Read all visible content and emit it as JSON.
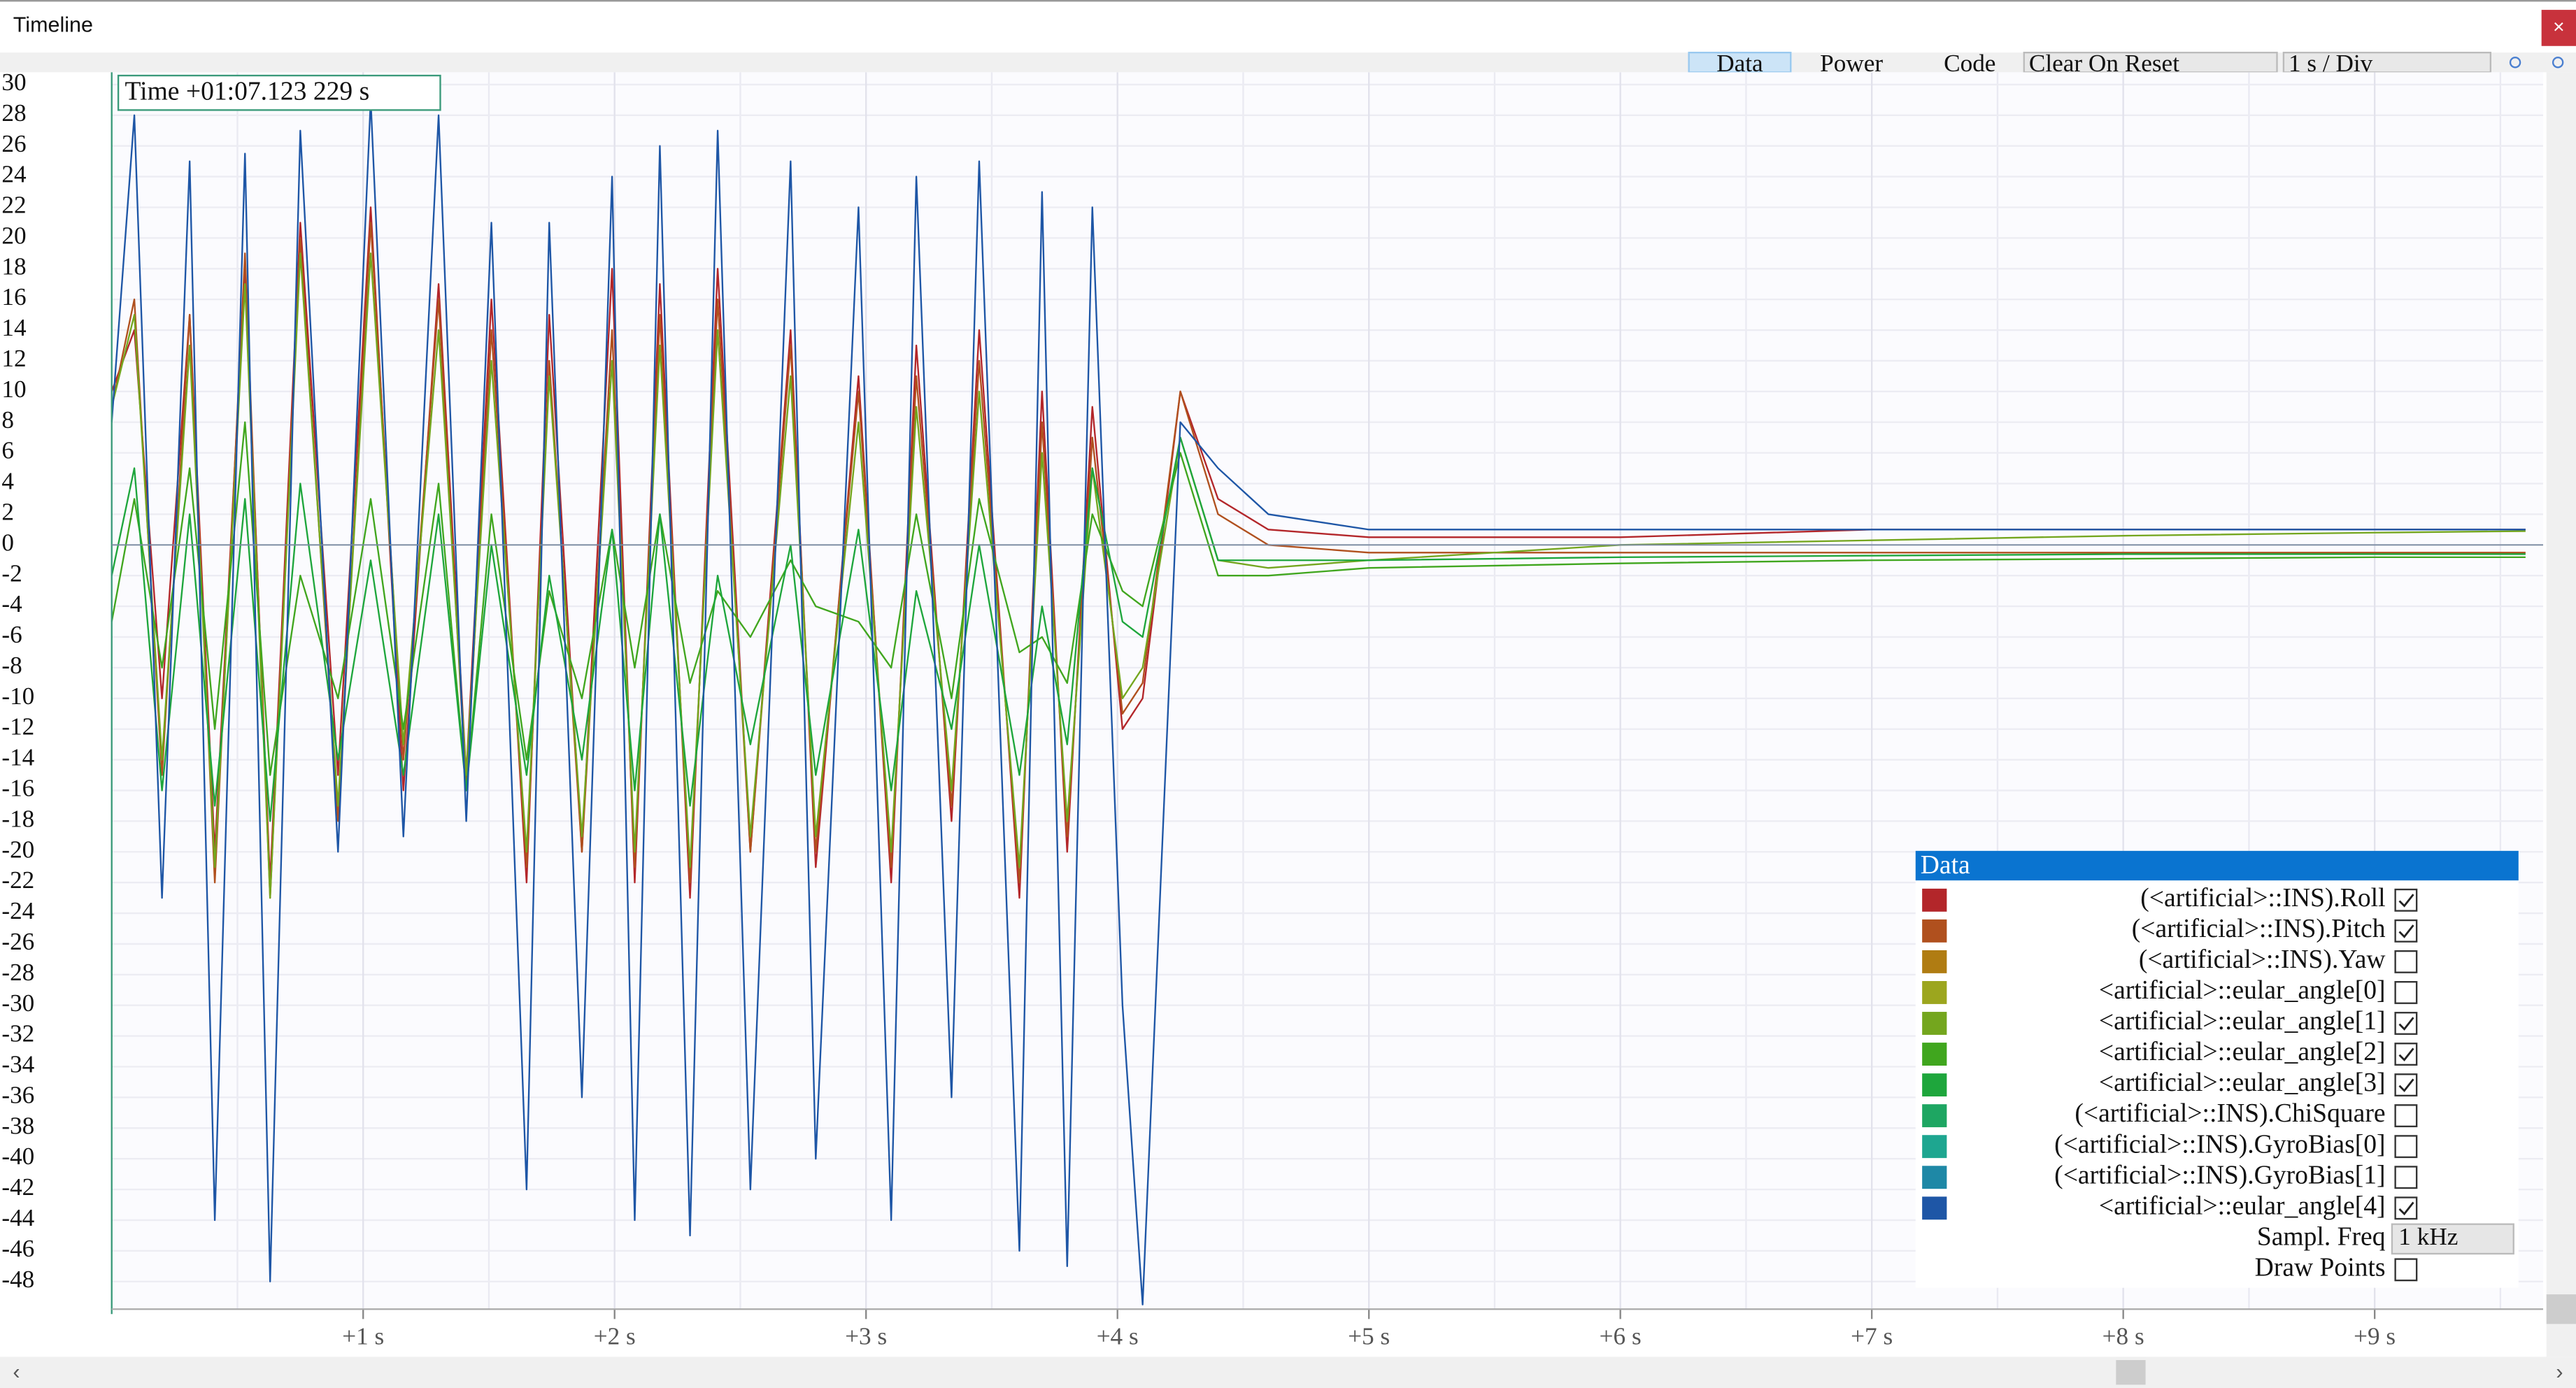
{
  "window": {
    "title": "Timeline"
  },
  "toolbar": {
    "tabs": [
      "Data",
      "Power",
      "Code"
    ],
    "active_tab": 0,
    "reset_mode": "Clear On Reset",
    "time_scale": "1 s / Div"
  },
  "chart_data": {
    "type": "line",
    "cursor_label": "Time +01:07.123 229 s",
    "x": [
      0,
      0.09,
      0.2,
      0.31,
      0.41,
      0.53,
      0.63,
      0.75,
      0.9,
      1.03,
      1.16,
      1.3,
      1.41,
      1.51,
      1.65,
      1.74,
      1.87,
      1.99,
      2.08,
      2.18,
      2.3,
      2.41,
      2.54,
      2.7,
      2.8,
      2.97,
      3.1,
      3.2,
      3.34,
      3.45,
      3.61,
      3.7,
      3.8,
      3.9,
      4.02,
      4.1,
      4.25,
      4.4,
      4.6,
      5,
      6,
      7,
      8,
      9,
      9.6
    ],
    "xlim": [
      0,
      9.67
    ],
    "xticks": [
      {
        "value": 1,
        "label": "+1 s"
      },
      {
        "value": 2,
        "label": "+2 s"
      },
      {
        "value": 3,
        "label": "+3 s"
      },
      {
        "value": 4,
        "label": "+4 s"
      },
      {
        "value": 5,
        "label": "+5 s"
      },
      {
        "value": 6,
        "label": "+6 s"
      },
      {
        "value": 7,
        "label": "+7 s"
      },
      {
        "value": 8,
        "label": "+8 s"
      },
      {
        "value": 9,
        "label": "+9 s"
      }
    ],
    "ylim": [
      -49.8,
      30.8
    ],
    "yticks": [
      30,
      28,
      26,
      24,
      22,
      20,
      18,
      16,
      14,
      12,
      10,
      8,
      6,
      4,
      2,
      0,
      -2,
      -4,
      -6,
      -8,
      -10,
      -12,
      -14,
      -16,
      -18,
      -20,
      -22,
      -24,
      -26,
      -28,
      -30,
      -32,
      -34,
      -36,
      -38,
      -40,
      -42,
      -44,
      -46,
      -48
    ],
    "grid": true,
    "series": [
      {
        "name": "(<artificial>::INS).Roll",
        "color": "#b3262a",
        "checked": true,
        "values": [
          10,
          14,
          -10,
          15,
          -20,
          18,
          -22,
          21,
          -15,
          22,
          -16,
          17,
          -15,
          16,
          -22,
          15,
          -20,
          18,
          -22,
          17,
          -23,
          18,
          -20,
          14,
          -21,
          11,
          -22,
          13,
          -18,
          14,
          -23,
          10,
          -20,
          9,
          -12,
          -10,
          10,
          3,
          1,
          0.5,
          0.5,
          1,
          1,
          1,
          1
        ]
      },
      {
        "name": "(<artificial>::INS).Pitch",
        "color": "#b0501e",
        "checked": true,
        "values": [
          9,
          16,
          -15,
          15,
          -22,
          19,
          -23,
          20,
          -18,
          21,
          -14,
          16,
          -16,
          14,
          -21,
          12,
          -20,
          14,
          -21,
          15,
          -22,
          16,
          -20,
          13,
          -20,
          10,
          -21,
          11,
          -17,
          12,
          -22,
          8,
          -19,
          7,
          -11,
          -9,
          10,
          2,
          0,
          -0.5,
          -0.5,
          -0.5,
          -0.5,
          -0.5,
          -0.5
        ]
      },
      {
        "name": "(<artificial>::INS).Yaw",
        "color": "#b07c12",
        "checked": false
      },
      {
        "name": "<artificial>::eular_angle[0]",
        "color": "#9ca61e",
        "checked": false
      },
      {
        "name": "<artificial>::eular_angle[1]",
        "color": "#74a61e",
        "checked": true,
        "values": [
          9,
          15,
          -14,
          13,
          -21,
          17,
          -23,
          19,
          -17,
          19,
          -13,
          14,
          -15,
          12,
          -20,
          11,
          -19,
          12,
          -20,
          13,
          -21,
          14,
          -19,
          11,
          -19,
          8,
          -20,
          9,
          -16,
          10,
          -21,
          6,
          -18,
          5,
          -10,
          -8,
          7,
          -1,
          -1.5,
          -1,
          0,
          0.3,
          0.6,
          0.8,
          0.9
        ]
      },
      {
        "name": "<artificial>::eular_angle[2]",
        "color": "#40a61e",
        "checked": true,
        "values": [
          -5,
          3,
          -8,
          5,
          -12,
          8,
          -15,
          -2,
          -10,
          3,
          -12,
          4,
          -16,
          2,
          -14,
          -3,
          -10,
          1,
          -8,
          2,
          -9,
          -3,
          -6,
          -1,
          -4,
          -5,
          -8,
          2,
          -10,
          3,
          -7,
          -6,
          -9,
          2,
          -3,
          -4,
          6,
          -2,
          -2,
          -1.5,
          -1.2,
          -1,
          -0.9,
          -0.8,
          -0.8
        ]
      },
      {
        "name": "<artificial>::eular_angle[3]",
        "color": "#1ea63c",
        "checked": true,
        "values": [
          -2,
          5,
          -16,
          2,
          -17,
          3,
          -18,
          4,
          -14,
          -1,
          -15,
          2,
          -16,
          0,
          -15,
          -2,
          -14,
          1,
          -16,
          2,
          -17,
          -2,
          -13,
          0,
          -15,
          1,
          -16,
          -3,
          -12,
          0,
          -15,
          -4,
          -13,
          5,
          -5,
          -6,
          7,
          -1,
          -1,
          -1,
          -0.8,
          -0.7,
          -0.6,
          -0.6,
          -0.6
        ]
      },
      {
        "name": "(<artificial>::INS).ChiSquare",
        "color": "#1ea662",
        "checked": false
      },
      {
        "name": "(<artificial>::INS).GyroBias[0]",
        "color": "#1ea690",
        "checked": false
      },
      {
        "name": "(<artificial>::INS).GyroBias[1]",
        "color": "#1e88a6",
        "checked": false
      },
      {
        "name": "<artificial>::eular_angle[4]",
        "color": "#1e56a6",
        "checked": true,
        "values": [
          8,
          28,
          -23,
          25,
          -44,
          25.5,
          -48,
          27,
          -20,
          29,
          -19,
          28,
          -18,
          21,
          -42,
          21,
          -36,
          24,
          -44,
          26,
          -45,
          27,
          -42,
          25,
          -40,
          22,
          -44,
          24,
          -36,
          25,
          -46,
          23,
          -47,
          22,
          -30,
          -49.5,
          8,
          5,
          2,
          1,
          1,
          1,
          1,
          1,
          1
        ]
      }
    ]
  },
  "panel": {
    "title": "Data",
    "sample_freq_label": "Sampl. Freq",
    "sample_freq": "1 kHz",
    "draw_points_label": "Draw Points",
    "draw_points": false
  }
}
